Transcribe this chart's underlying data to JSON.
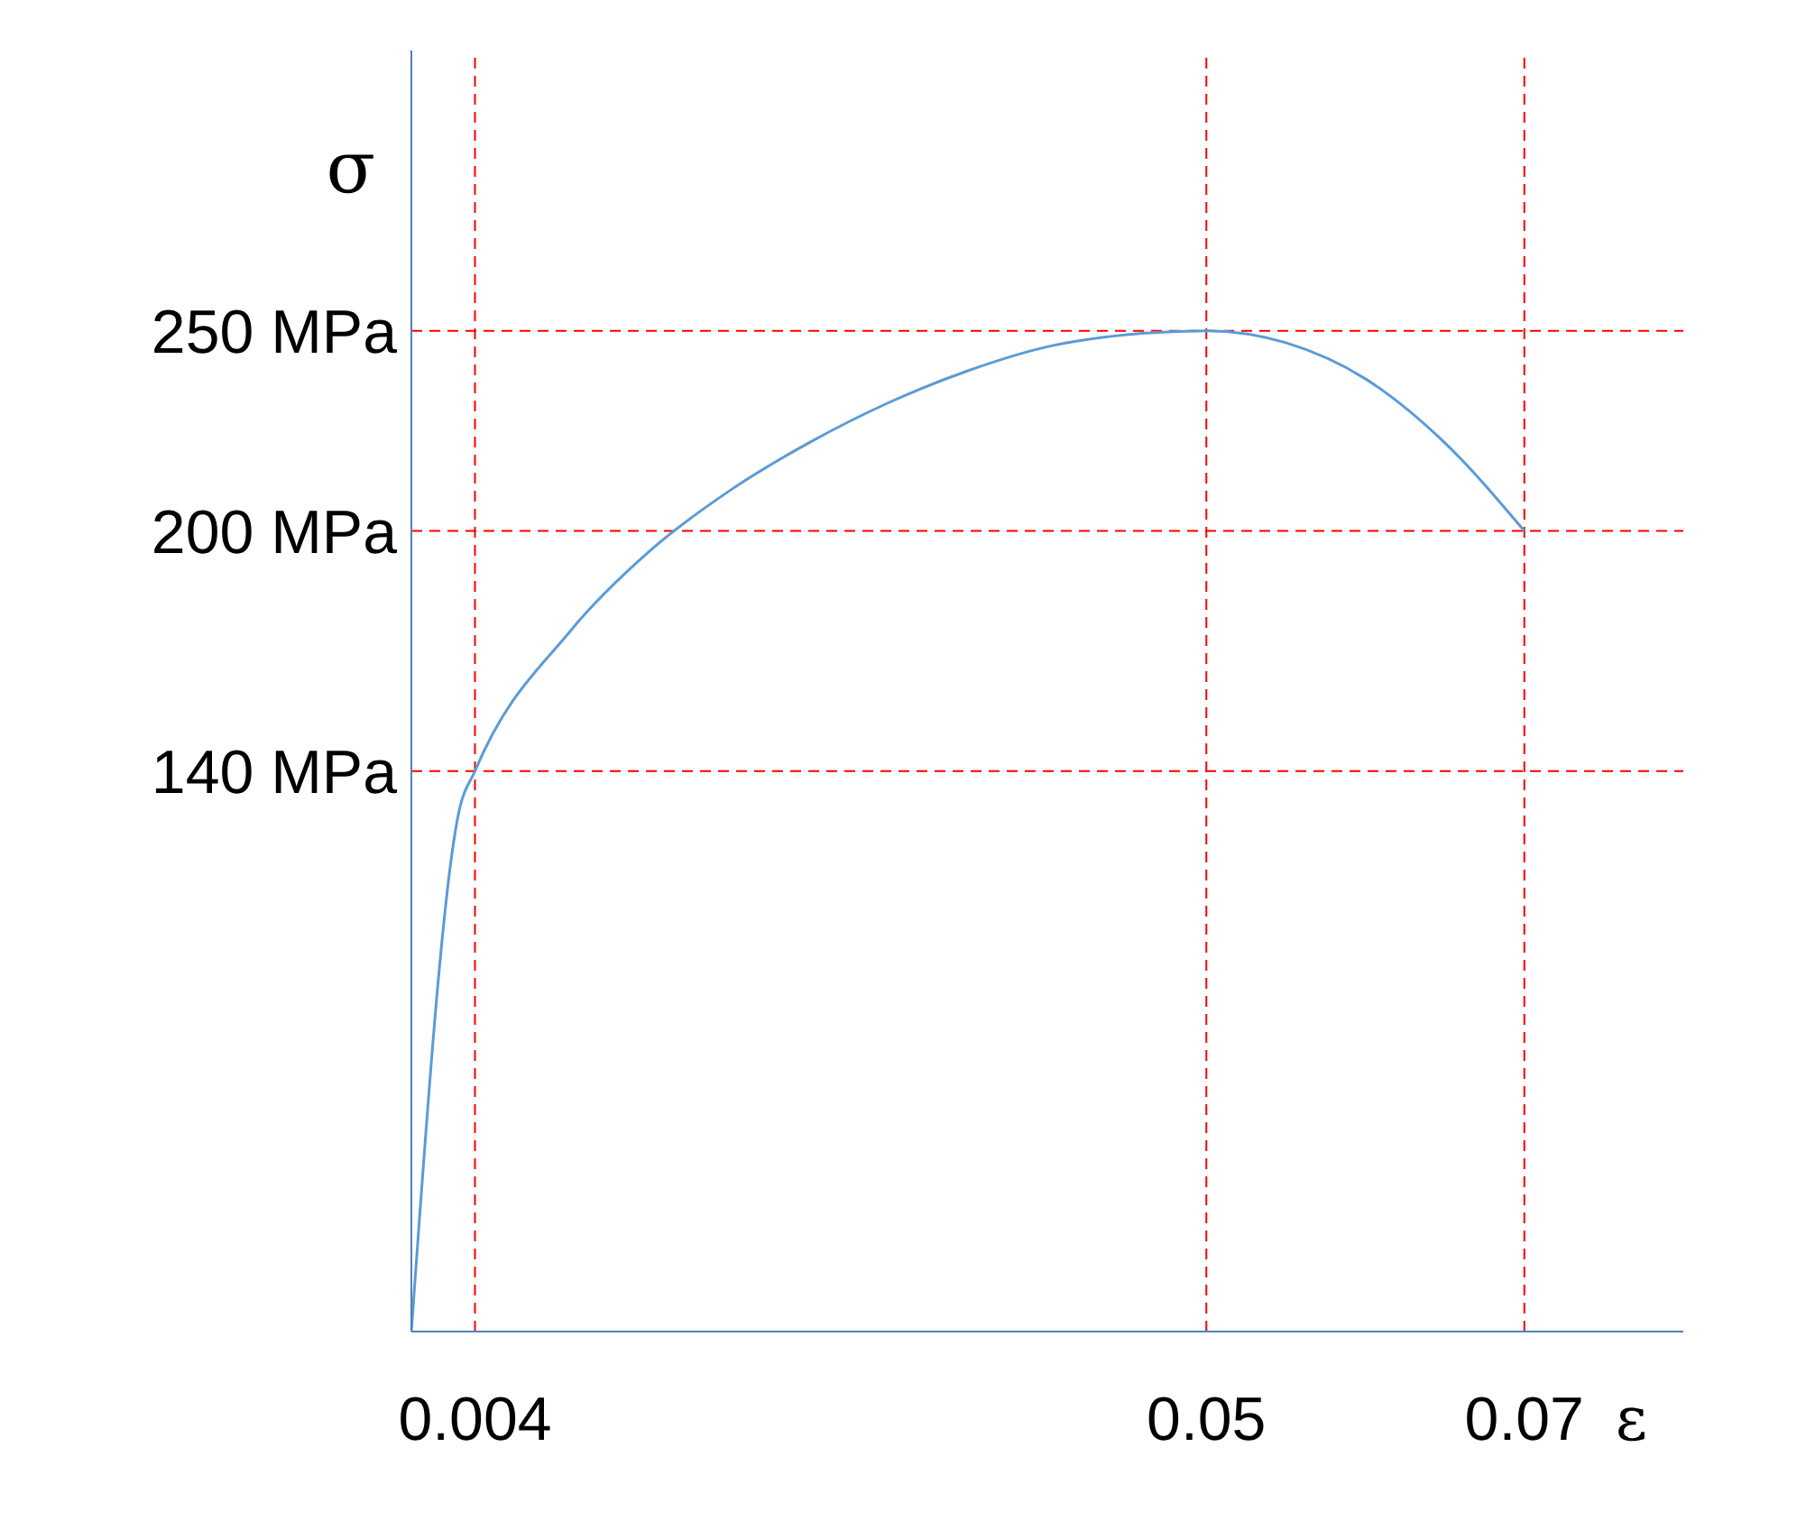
{
  "chart_data": {
    "type": "line",
    "xlabel": "ε",
    "ylabel": "σ",
    "x": [
      0,
      0.003,
      0.004,
      0.01,
      0.015,
      0.02,
      0.025,
      0.03,
      0.035,
      0.04,
      0.045,
      0.05,
      0.055,
      0.06,
      0.065,
      0.07
    ],
    "series": [
      {
        "color": "#5b9bd5",
        "values": [
          0,
          130,
          140,
          175,
          195,
          210,
          222,
          232,
          240,
          246,
          249,
          250,
          247,
          238,
          222,
          200
        ]
      }
    ],
    "xlim": [
      0,
      0.08
    ],
    "xticks": [
      0.004,
      0.05,
      0.07
    ],
    "ylim": [
      0,
      320
    ],
    "yticks": [
      {
        "value": 140,
        "label": "140 MPa"
      },
      {
        "value": 200,
        "label": "200 MPa"
      },
      {
        "value": 250,
        "label": "250 MPa"
      }
    ],
    "ref_lines": [
      {
        "axis": "x",
        "value": 0.004,
        "color": "#ff0000",
        "line_style": "dashed"
      },
      {
        "axis": "x",
        "value": 0.05,
        "color": "#ff0000",
        "line_style": "dashed"
      },
      {
        "axis": "x",
        "value": 0.07,
        "color": "#ff0000",
        "line_style": "dashed"
      },
      {
        "axis": "y",
        "value": 140,
        "color": "#ff0000",
        "line_style": "dashed"
      },
      {
        "axis": "y",
        "value": 200,
        "color": "#ff0000",
        "line_style": "dashed"
      },
      {
        "axis": "y",
        "value": 250,
        "color": "#ff0000",
        "line_style": "dashed"
      }
    ],
    "grid": false,
    "legend": false,
    "marker": "none",
    "line_style": "solid"
  }
}
